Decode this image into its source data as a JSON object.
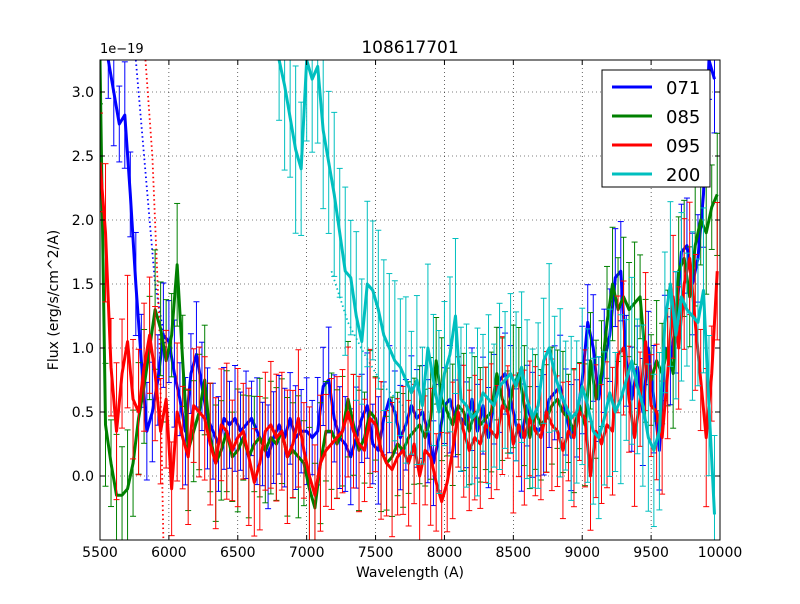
{
  "chart_data": {
    "type": "line",
    "title": "108617701",
    "xlabel": "Wavelength (A)",
    "ylabel": "Flux (erg/s/cm^2/A)",
    "offset_label": "1e−19",
    "xlim": [
      5500,
      10000
    ],
    "ylim": [
      -0.5,
      3.25
    ],
    "xticks": [
      5500,
      6000,
      6500,
      7000,
      7500,
      8000,
      8500,
      9000,
      9500,
      10000
    ],
    "yticks": [
      0.0,
      0.5,
      1.0,
      1.5,
      2.0,
      2.5,
      3.0
    ],
    "ytick_labels": [
      "0.0",
      "0.5",
      "1.0",
      "1.5",
      "2.0",
      "2.5",
      "3.0"
    ],
    "grid": true,
    "legend_position": "top-right",
    "series": [
      {
        "name": "071",
        "color": "#0000ff",
        "err": 0.35,
        "x": [
          5560,
          5600,
          5640,
          5680,
          5720,
          5760,
          5800,
          5840,
          5880,
          5920,
          5960,
          6000,
          6040,
          6080,
          6120,
          6160,
          6200,
          6240,
          6280,
          6320,
          6360,
          6400,
          6440,
          6480,
          6520,
          6560,
          6600,
          6640,
          6680,
          6720,
          6760,
          6800,
          6840,
          6880,
          6920,
          6960,
          7000,
          7040,
          7080,
          7120,
          7160,
          7200,
          7240,
          7280,
          7320,
          7360,
          7400,
          7440,
          7480,
          7520,
          7560,
          7600,
          7640,
          7680,
          7720,
          7760,
          7800,
          7840,
          7880,
          7920,
          7960,
          8000,
          8040,
          8080,
          8120,
          8160,
          8200,
          8240,
          8280,
          8320,
          8360,
          8400,
          8440,
          8480,
          8520,
          8560,
          8600,
          8640,
          8680,
          8720,
          8760,
          8800,
          8840,
          8880,
          8920,
          8960,
          9000,
          9040,
          9080,
          9120,
          9160,
          9200,
          9240,
          9280,
          9320,
          9360,
          9400,
          9440,
          9480,
          9520,
          9560,
          9600,
          9640,
          9680,
          9720,
          9760,
          9800,
          9840,
          9880,
          9920,
          9960
        ],
        "y": [
          3.25,
          3.0,
          2.75,
          2.82,
          2.2,
          1.5,
          0.9,
          0.35,
          0.5,
          0.75,
          1.1,
          1.05,
          0.8,
          0.6,
          0.35,
          0.8,
          0.95,
          0.7,
          0.45,
          0.35,
          0.25,
          0.45,
          0.4,
          0.45,
          0.35,
          0.4,
          0.45,
          0.35,
          0.25,
          0.15,
          0.3,
          0.4,
          0.3,
          0.45,
          0.3,
          0.35,
          0.35,
          0.3,
          0.35,
          0.7,
          0.75,
          0.45,
          0.3,
          0.25,
          0.15,
          0.3,
          0.45,
          0.55,
          0.25,
          0.2,
          0.45,
          0.6,
          0.5,
          0.3,
          0.4,
          0.55,
          0.45,
          0.5,
          0.35,
          0.1,
          0.3,
          0.55,
          0.6,
          0.45,
          0.45,
          0.4,
          0.6,
          0.35,
          0.55,
          0.3,
          0.6,
          0.75,
          0.8,
          0.6,
          0.4,
          0.3,
          0.55,
          0.4,
          0.35,
          0.4,
          0.6,
          0.65,
          0.7,
          0.5,
          0.3,
          0.45,
          0.75,
          1.2,
          1.0,
          0.6,
          0.9,
          1.1,
          1.55,
          1.6,
          0.9,
          0.6,
          0.85,
          0.5,
          1.0,
          0.6,
          0.2,
          1.0,
          0.9,
          1.2,
          1.75,
          1.8,
          1.5,
          1.7,
          2.2,
          3.25,
          3.1
        ]
      },
      {
        "name": "085",
        "color": "#008000",
        "err": 0.4,
        "x": [
          5500,
          5540,
          5580,
          5620,
          5660,
          5700,
          5740,
          5780,
          5820,
          5860,
          5900,
          5940,
          5980,
          6020,
          6060,
          6100,
          6140,
          6180,
          6220,
          6260,
          6300,
          6340,
          6380,
          6420,
          6460,
          6500,
          6540,
          6580,
          6620,
          6660,
          6700,
          6740,
          6780,
          6820,
          6860,
          6900,
          6940,
          6980,
          7020,
          7060,
          7100,
          7140,
          7180,
          7220,
          7260,
          7300,
          7340,
          7380,
          7420,
          7460,
          7500,
          7540,
          7580,
          7620,
          7660,
          7700,
          7740,
          7780,
          7820,
          7860,
          7900,
          7940,
          7980,
          8020,
          8060,
          8100,
          8140,
          8180,
          8220,
          8260,
          8300,
          8340,
          8380,
          8420,
          8460,
          8500,
          8540,
          8580,
          8620,
          8660,
          8700,
          8740,
          8780,
          8820,
          8860,
          8900,
          8940,
          8980,
          9020,
          9060,
          9100,
          9140,
          9180,
          9220,
          9260,
          9300,
          9340,
          9380,
          9420,
          9460,
          9500,
          9540,
          9580,
          9620,
          9660,
          9700,
          9740,
          9780,
          9820,
          9860,
          9900,
          9940,
          9980
        ],
        "y": [
          3.25,
          0.4,
          0.1,
          -0.15,
          -0.15,
          -0.1,
          0.1,
          0.45,
          0.7,
          1.0,
          1.3,
          1.15,
          0.9,
          1.1,
          1.65,
          0.9,
          0.2,
          0.35,
          0.5,
          0.75,
          0.3,
          0.1,
          0.2,
          0.35,
          0.15,
          0.2,
          0.3,
          0.15,
          0.25,
          0.3,
          0.2,
          0.3,
          0.25,
          0.35,
          0.15,
          0.2,
          0.15,
          0.1,
          -0.1,
          -0.25,
          0.1,
          0.35,
          0.35,
          0.25,
          0.35,
          0.6,
          0.4,
          0.2,
          0.3,
          0.5,
          0.45,
          0.2,
          0.1,
          0.15,
          0.25,
          0.2,
          0.3,
          0.35,
          0.4,
          0.3,
          0.45,
          0.9,
          0.6,
          0.5,
          0.4,
          0.55,
          0.5,
          0.35,
          0.5,
          0.4,
          0.45,
          0.5,
          0.8,
          0.6,
          0.5,
          0.7,
          0.8,
          0.55,
          0.3,
          0.5,
          0.4,
          0.45,
          0.55,
          0.6,
          0.5,
          0.45,
          0.35,
          0.55,
          0.4,
          0.9,
          0.6,
          0.8,
          1.2,
          1.5,
          1.3,
          1.4,
          1.3,
          1.35,
          1.4,
          0.9,
          0.75,
          0.9,
          0.8,
          1.0,
          0.8,
          1.6,
          1.7,
          1.4,
          1.8,
          2.0,
          1.9,
          2.1,
          2.2
        ]
      },
      {
        "name": "095",
        "color": "#ff0000",
        "err": 0.45,
        "x": [
          5500,
          5540,
          5580,
          5620,
          5660,
          5700,
          5740,
          5780,
          5820,
          5860,
          5900,
          5940,
          5980,
          6020,
          6060,
          6100,
          6140,
          6180,
          6220,
          6260,
          6300,
          6340,
          6380,
          6420,
          6460,
          6500,
          6540,
          6580,
          6620,
          6660,
          6700,
          6740,
          6780,
          6820,
          6860,
          6900,
          6940,
          6980,
          7020,
          7060,
          7100,
          7140,
          7180,
          7220,
          7260,
          7300,
          7340,
          7380,
          7420,
          7460,
          7500,
          7540,
          7580,
          7620,
          7660,
          7700,
          7740,
          7780,
          7820,
          7860,
          7900,
          7940,
          7980,
          8020,
          8060,
          8100,
          8140,
          8180,
          8220,
          8260,
          8300,
          8340,
          8380,
          8420,
          8460,
          8500,
          8540,
          8580,
          8620,
          8660,
          8700,
          8740,
          8780,
          8820,
          8860,
          8900,
          8940,
          8980,
          9020,
          9060,
          9100,
          9140,
          9180,
          9220,
          9260,
          9300,
          9340,
          9380,
          9420,
          9460,
          9500,
          9540,
          9580,
          9620,
          9660,
          9700,
          9740,
          9780,
          9820,
          9860,
          9900,
          9940,
          9980
        ],
        "y": [
          2.45,
          1.9,
          0.85,
          0.35,
          0.8,
          1.05,
          0.6,
          0.5,
          0.85,
          1.1,
          0.8,
          0.35,
          0.6,
          -0.1,
          0.5,
          0.3,
          0.15,
          0.55,
          0.5,
          0.45,
          0.25,
          0.1,
          0.4,
          0.35,
          0.2,
          0.3,
          0.35,
          0.15,
          -0.05,
          0.1,
          0.35,
          0.4,
          0.3,
          0.35,
          0.15,
          0.25,
          0.45,
          0.2,
          0.0,
          -0.15,
          0.1,
          0.2,
          0.25,
          0.3,
          0.35,
          0.5,
          0.35,
          0.25,
          0.2,
          0.45,
          0.4,
          0.2,
          0.1,
          0.05,
          0.15,
          0.2,
          0.1,
          0.25,
          0.0,
          0.2,
          0.15,
          -0.05,
          -0.2,
          -0.05,
          0.2,
          0.5,
          0.35,
          0.2,
          0.3,
          0.25,
          0.4,
          0.35,
          0.3,
          0.55,
          0.5,
          0.25,
          0.4,
          0.3,
          0.45,
          0.35,
          0.3,
          0.5,
          0.4,
          0.35,
          0.2,
          0.35,
          0.3,
          0.5,
          0.45,
          0.0,
          0.35,
          0.25,
          0.4,
          0.35,
          0.95,
          1.0,
          0.6,
          0.3,
          0.6,
          1.05,
          0.55,
          0.5,
          0.3,
          0.8,
          1.4,
          1.0,
          1.5,
          1.7,
          1.2,
          0.75,
          0.3,
          0.8,
          1.6
        ]
      },
      {
        "name": "200",
        "color": "#00bfbf",
        "err": 0.55,
        "x": [
          6800,
          6840,
          6880,
          6920,
          6960,
          7000,
          7040,
          7080,
          7120,
          7160,
          7200,
          7240,
          7280,
          7320,
          7360,
          7400,
          7440,
          7480,
          7520,
          7560,
          7600,
          7640,
          7680,
          7720,
          7760,
          7800,
          7840,
          7880,
          7920,
          7960,
          8000,
          8040,
          8080,
          8120,
          8160,
          8200,
          8240,
          8280,
          8320,
          8360,
          8400,
          8440,
          8480,
          8520,
          8560,
          8600,
          8640,
          8680,
          8720,
          8760,
          8800,
          8840,
          8880,
          8920,
          8960,
          9000,
          9040,
          9080,
          9120,
          9160,
          9200,
          9240,
          9280,
          9320,
          9360,
          9400,
          9440,
          9480,
          9520,
          9560,
          9600,
          9640,
          9680,
          9720,
          9760,
          9800,
          9840,
          9880,
          9920,
          9960
        ],
        "y": [
          3.25,
          3.05,
          2.8,
          2.55,
          2.4,
          3.25,
          3.1,
          3.2,
          2.7,
          2.45,
          2.2,
          1.9,
          1.6,
          1.55,
          1.25,
          1.05,
          1.5,
          1.45,
          1.3,
          1.1,
          1.0,
          0.9,
          0.85,
          0.75,
          0.65,
          0.75,
          0.55,
          1.0,
          0.75,
          0.5,
          0.8,
          0.95,
          1.25,
          0.6,
          0.55,
          0.45,
          0.5,
          0.65,
          0.6,
          0.55,
          0.7,
          0.75,
          0.8,
          0.7,
          0.85,
          0.6,
          0.45,
          0.55,
          0.9,
          1.0,
          0.8,
          0.65,
          0.55,
          0.45,
          0.5,
          0.7,
          0.55,
          0.35,
          0.3,
          0.45,
          0.65,
          0.5,
          0.6,
          0.75,
          0.9,
          0.7,
          0.55,
          0.3,
          0.2,
          0.35,
          1.2,
          1.5,
          1.1,
          1.4,
          1.3,
          1.25,
          1.2,
          1.45,
          0.55,
          -0.3
        ]
      }
    ],
    "dotted_guides": [
      {
        "name": "071-extrap",
        "color": "#0000ff",
        "x": [
          5760,
          5820,
          5900,
          5980
        ],
        "y": [
          3.25,
          2.5,
          1.5,
          1.0
        ]
      },
      {
        "name": "095-extrap",
        "color": "#ff0000",
        "x": [
          5830,
          5880,
          5930,
          5960
        ],
        "y": [
          3.25,
          2.5,
          1.2,
          -0.5
        ]
      },
      {
        "name": "200-extrap",
        "color": "#00bfbf",
        "x": [
          7180,
          7300,
          7420,
          7560,
          7700
        ],
        "y": [
          1.6,
          1.2,
          0.95,
          0.7,
          0.55
        ]
      }
    ]
  }
}
